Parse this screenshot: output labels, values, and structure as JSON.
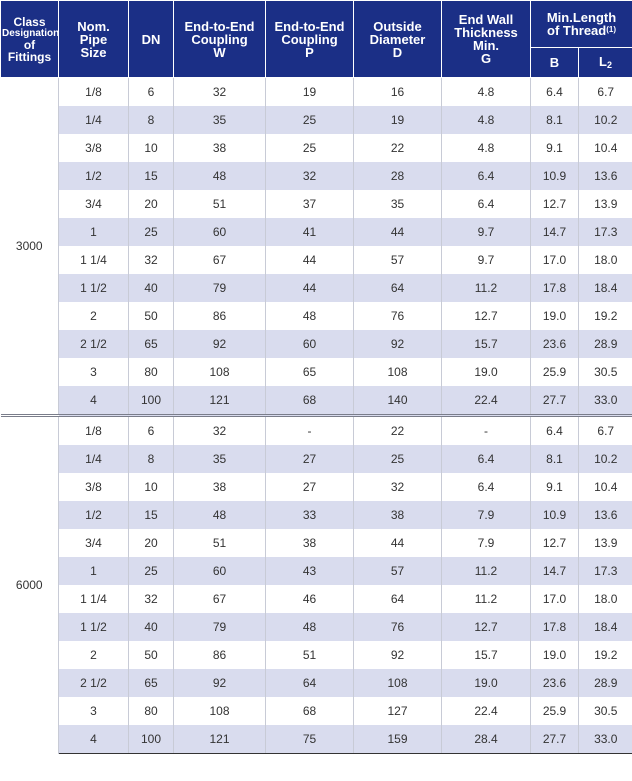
{
  "table": {
    "headers": {
      "class_line1": "Class",
      "class_line2": "Designation",
      "class_line3": "of",
      "class_line4": "Fittings",
      "nps_line1": "Nom.",
      "nps_line2": "Pipe",
      "nps_line3": "Size",
      "dn": "DN",
      "w_line1": "End-to-End",
      "w_line2": "Coupling",
      "w_line3": "W",
      "p_line1": "End-to-End",
      "p_line2": "Coupling",
      "p_line3": "P",
      "d_line1": "Outside",
      "d_line2": "Diameter",
      "d_line3": "D",
      "g_line1": "End Wall",
      "g_line2": "Thickness",
      "g_line3": "Min.",
      "g_line4": "G",
      "thread_line1": "Min.Length",
      "thread_line2": "of Thread",
      "thread_note": "(1)",
      "b": "B",
      "l2_main": "L",
      "l2_sub": "2"
    },
    "groups": [
      {
        "class": "3000",
        "rows": [
          [
            "1/8",
            "6",
            "32",
            "19",
            "16",
            "4.8",
            "6.4",
            "6.7"
          ],
          [
            "1/4",
            "8",
            "35",
            "25",
            "19",
            "4.8",
            "8.1",
            "10.2"
          ],
          [
            "3/8",
            "10",
            "38",
            "25",
            "22",
            "4.8",
            "9.1",
            "10.4"
          ],
          [
            "1/2",
            "15",
            "48",
            "32",
            "28",
            "6.4",
            "10.9",
            "13.6"
          ],
          [
            "3/4",
            "20",
            "51",
            "37",
            "35",
            "6.4",
            "12.7",
            "13.9"
          ],
          [
            "1",
            "25",
            "60",
            "41",
            "44",
            "9.7",
            "14.7",
            "17.3"
          ],
          [
            "1 1/4",
            "32",
            "67",
            "44",
            "57",
            "9.7",
            "17.0",
            "18.0"
          ],
          [
            "1 1/2",
            "40",
            "79",
            "44",
            "64",
            "11.2",
            "17.8",
            "18.4"
          ],
          [
            "2",
            "50",
            "86",
            "48",
            "76",
            "12.7",
            "19.0",
            "19.2"
          ],
          [
            "2 1/2",
            "65",
            "92",
            "60",
            "92",
            "15.7",
            "23.6",
            "28.9"
          ],
          [
            "3",
            "80",
            "108",
            "65",
            "108",
            "19.0",
            "25.9",
            "30.5"
          ],
          [
            "4",
            "100",
            "121",
            "68",
            "140",
            "22.4",
            "27.7",
            "33.0"
          ]
        ]
      },
      {
        "class": "6000",
        "rows": [
          [
            "1/8",
            "6",
            "32",
            "-",
            "22",
            "-",
            "6.4",
            "6.7"
          ],
          [
            "1/4",
            "8",
            "35",
            "27",
            "25",
            "6.4",
            "8.1",
            "10.2"
          ],
          [
            "3/8",
            "10",
            "38",
            "27",
            "32",
            "6.4",
            "9.1",
            "10.4"
          ],
          [
            "1/2",
            "15",
            "48",
            "33",
            "38",
            "7.9",
            "10.9",
            "13.6"
          ],
          [
            "3/4",
            "20",
            "51",
            "38",
            "44",
            "7.9",
            "12.7",
            "13.9"
          ],
          [
            "1",
            "25",
            "60",
            "43",
            "57",
            "11.2",
            "14.7",
            "17.3"
          ],
          [
            "1 1/4",
            "32",
            "67",
            "46",
            "64",
            "11.2",
            "17.0",
            "18.0"
          ],
          [
            "1 1/2",
            "40",
            "79",
            "48",
            "76",
            "12.7",
            "17.8",
            "18.4"
          ],
          [
            "2",
            "50",
            "86",
            "51",
            "92",
            "15.7",
            "19.0",
            "19.2"
          ],
          [
            "2 1/2",
            "65",
            "92",
            "64",
            "108",
            "19.0",
            "23.6",
            "28.9"
          ],
          [
            "3",
            "80",
            "108",
            "68",
            "127",
            "22.4",
            "25.9",
            "30.5"
          ],
          [
            "4",
            "100",
            "121",
            "75",
            "159",
            "28.4",
            "27.7",
            "33.0"
          ]
        ]
      }
    ]
  }
}
